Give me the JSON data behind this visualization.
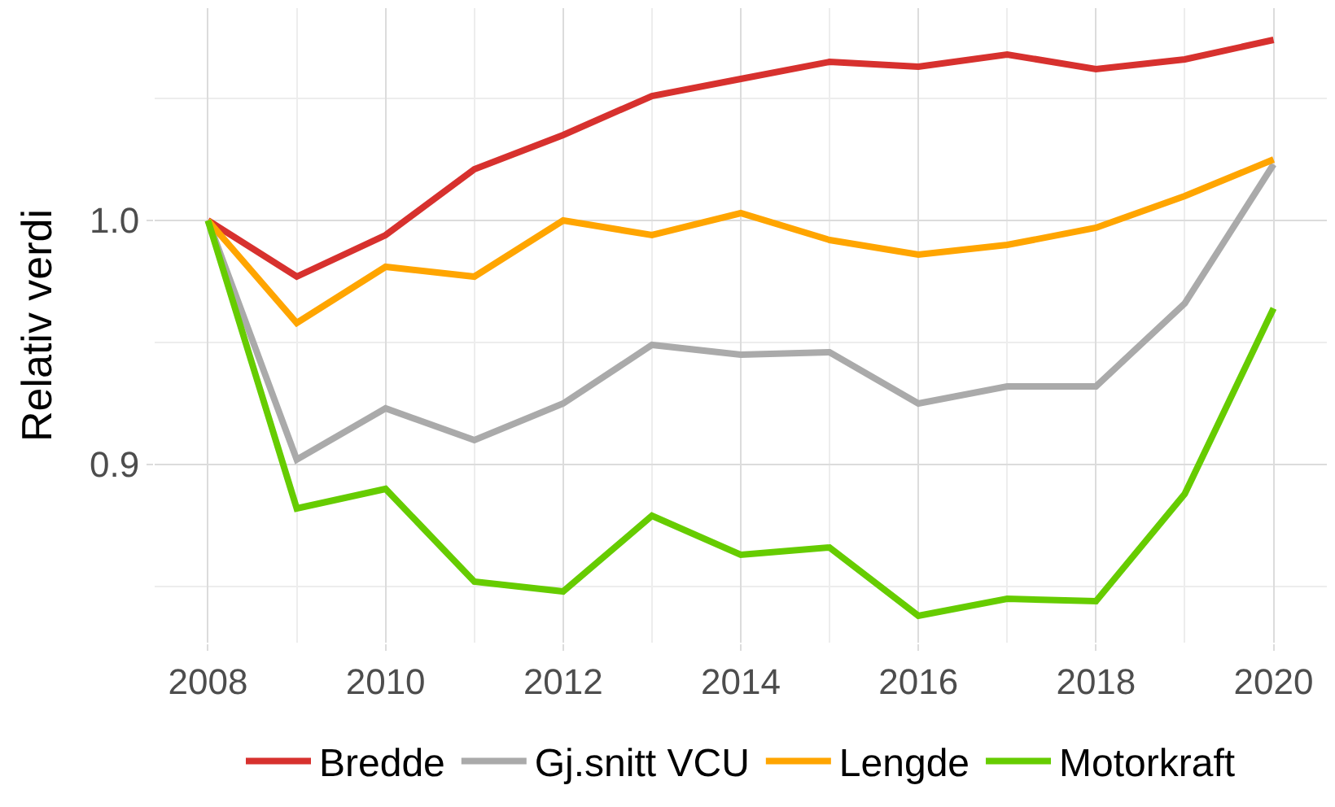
{
  "chart_data": {
    "type": "line",
    "ylabel": "Relativ verdi",
    "x": [
      2008,
      2009,
      2010,
      2011,
      2012,
      2013,
      2014,
      2015,
      2016,
      2017,
      2018,
      2019,
      2020
    ],
    "xlim": [
      2007.4,
      2020.6
    ],
    "xticks": [
      2008,
      2010,
      2012,
      2014,
      2016,
      2018,
      2020
    ],
    "ylim": [
      0.827,
      1.087
    ],
    "yticks": [
      {
        "value": 0.9,
        "label": "0.9"
      },
      {
        "value": 1.0,
        "label": "1.0"
      }
    ],
    "grid": true,
    "legend": "bottom",
    "marker": "none",
    "line_style": "solid",
    "series": [
      {
        "name": "Bredde",
        "color": "#d7312e",
        "values": [
          1.0,
          0.977,
          0.994,
          1.021,
          1.035,
          1.051,
          1.058,
          1.065,
          1.063,
          1.068,
          1.062,
          1.066,
          1.074
        ]
      },
      {
        "name": "Gj.snitt VCU",
        "color": "#aaaaaa",
        "values": [
          1.0,
          0.902,
          0.923,
          0.91,
          0.925,
          0.949,
          0.945,
          0.946,
          0.925,
          0.932,
          0.932,
          0.966,
          1.023
        ]
      },
      {
        "name": "Lengde",
        "color": "#ffa500",
        "values": [
          1.0,
          0.958,
          0.981,
          0.977,
          1.0,
          0.994,
          1.003,
          0.992,
          0.986,
          0.99,
          0.997,
          1.01,
          1.025
        ]
      },
      {
        "name": "Motorkraft",
        "color": "#66cc00",
        "values": [
          1.0,
          0.882,
          0.89,
          0.852,
          0.848,
          0.879,
          0.863,
          0.866,
          0.838,
          0.845,
          0.844,
          0.888,
          0.964
        ]
      }
    ]
  }
}
